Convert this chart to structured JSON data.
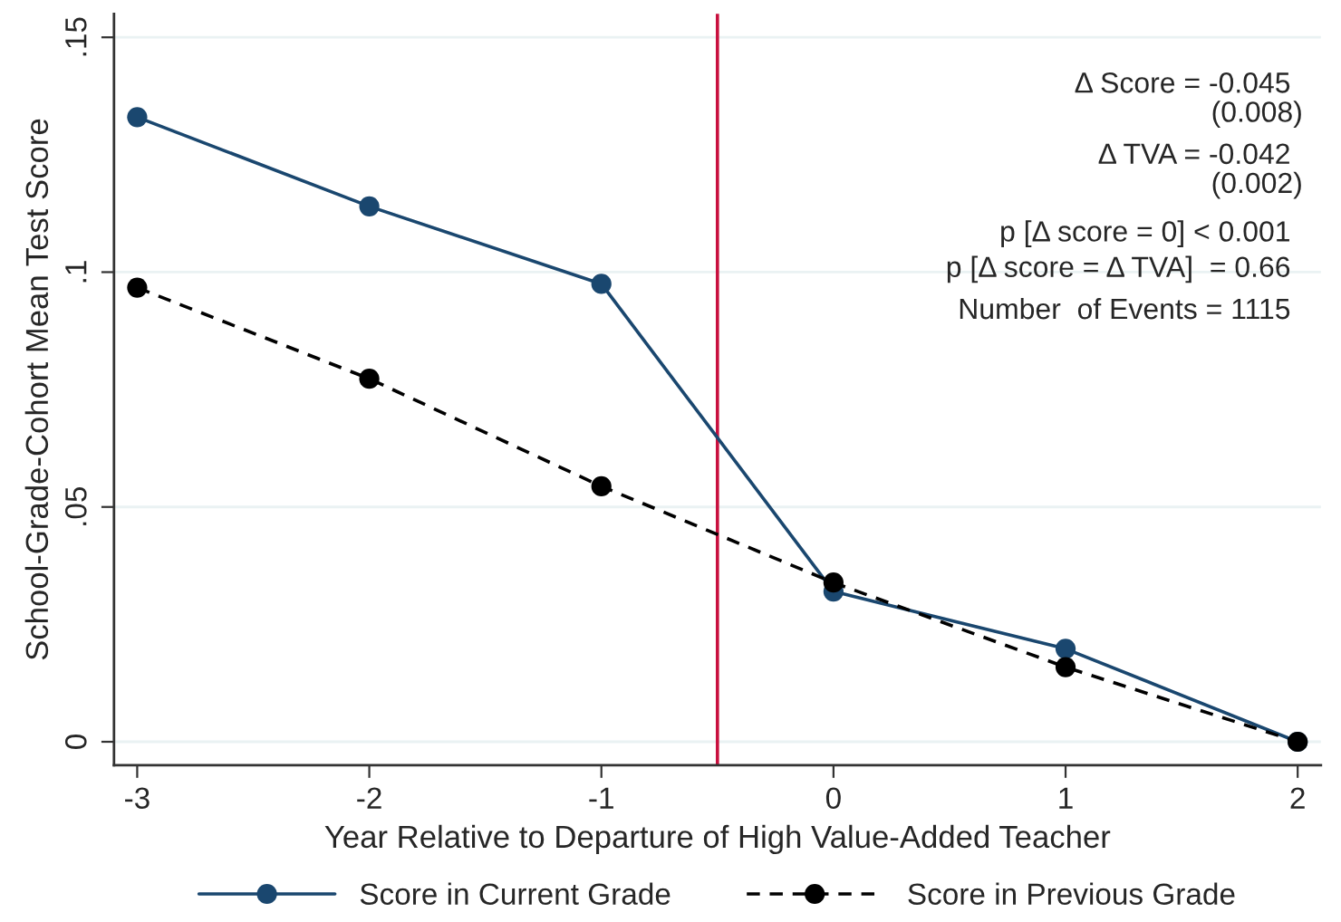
{
  "chart_data": {
    "type": "line",
    "xlabel": "Year Relative to Departure of High Value-Added Teacher",
    "ylabel": "School-Grade-Cohort Mean Test Score",
    "x": [
      -3,
      -2,
      -1,
      0,
      1,
      2
    ],
    "series": [
      {
        "name": "Score in Current Grade",
        "color": "#1a476f",
        "line_style": "solid",
        "values": [
          0.133,
          0.114,
          0.0975,
          0.032,
          0.0198,
          0.0
        ]
      },
      {
        "name": "Score in Previous Grade",
        "color": "#000000",
        "line_style": "dashed",
        "values": [
          0.0967,
          0.0773,
          0.0544,
          0.0339,
          0.0159,
          0.0
        ]
      }
    ],
    "marker": "circle",
    "xlim": [
      -3.1,
      2.1
    ],
    "xticks": [
      -3,
      -2,
      -1,
      0,
      1,
      2
    ],
    "ylim": [
      -0.005,
      0.155
    ],
    "yticks": [
      {
        "value": 0,
        "label": "0"
      },
      {
        "value": 0.05,
        "label": ".05"
      },
      {
        "value": 0.1,
        "label": ".1"
      },
      {
        "value": 0.15,
        "label": ".15"
      }
    ],
    "ref_lines": [
      {
        "axis": "x",
        "value": -0.5,
        "color": "#c8103e"
      }
    ],
    "annotations": [
      "Δ Score = -0.045",
      "(0.008)",
      "Δ TVA = -0.042",
      "(0.002)",
      "p [Δ score = 0] < 0.001",
      "p [Δ score = Δ TVA]  = 0.66",
      "Number  of Events = 1115"
    ],
    "grid": "y",
    "legend": "bottom"
  }
}
